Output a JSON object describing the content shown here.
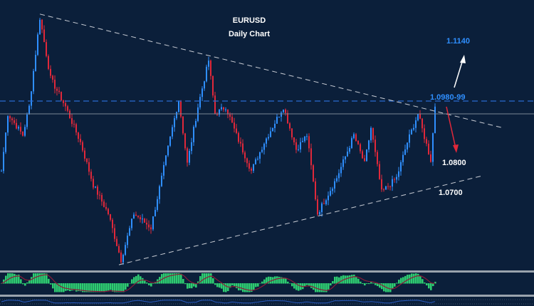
{
  "chart_data": {
    "type": "candlestick",
    "title": "EURUSD",
    "subtitle": "Daily Chart",
    "ylim": [
      1.041,
      1.129
    ],
    "key_closes": [
      {
        "bar": 0,
        "price": 1.0767
      },
      {
        "bar": 3,
        "price": 1.0941
      },
      {
        "bar": 10,
        "price": 1.0876
      },
      {
        "bar": 13,
        "price": 1.0963
      },
      {
        "bar": 18,
        "price": 1.1234
      },
      {
        "bar": 23,
        "price": 1.1049
      },
      {
        "bar": 30,
        "price": 1.0963
      },
      {
        "bar": 37,
        "price": 1.0854
      },
      {
        "bar": 43,
        "price": 1.0724
      },
      {
        "bar": 50,
        "price": 1.0637
      },
      {
        "bar": 56,
        "price": 1.0496
      },
      {
        "bar": 62,
        "price": 1.0637
      },
      {
        "bar": 70,
        "price": 1.0594
      },
      {
        "bar": 75,
        "price": 1.0746
      },
      {
        "bar": 80,
        "price": 1.0898
      },
      {
        "bar": 83,
        "price": 1.0984
      },
      {
        "bar": 87,
        "price": 1.0789
      },
      {
        "bar": 92,
        "price": 1.0963
      },
      {
        "bar": 97,
        "price": 1.1104
      },
      {
        "bar": 100,
        "price": 1.0941
      },
      {
        "bar": 105,
        "price": 1.0963
      },
      {
        "bar": 110,
        "price": 1.0876
      },
      {
        "bar": 117,
        "price": 1.0767
      },
      {
        "bar": 123,
        "price": 1.0854
      },
      {
        "bar": 132,
        "price": 1.0963
      },
      {
        "bar": 138,
        "price": 1.0833
      },
      {
        "bar": 143,
        "price": 1.0876
      },
      {
        "bar": 148,
        "price": 1.0637
      },
      {
        "bar": 157,
        "price": 1.0746
      },
      {
        "bar": 165,
        "price": 1.0876
      },
      {
        "bar": 170,
        "price": 1.0789
      },
      {
        "bar": 173,
        "price": 1.0898
      },
      {
        "bar": 178,
        "price": 1.0702
      },
      {
        "bar": 185,
        "price": 1.0746
      },
      {
        "bar": 190,
        "price": 1.0854
      },
      {
        "bar": 195,
        "price": 1.0941
      },
      {
        "bar": 201,
        "price": 1.08
      },
      {
        "bar": 203,
        "price": 1.0963
      }
    ],
    "trendlines": {
      "upper": {
        "from": {
          "bar": 18,
          "price": 1.1245
        },
        "to": {
          "bar": 235,
          "price": 1.0898
        }
      },
      "lower": {
        "from": {
          "bar": 55,
          "price": 1.0481
        },
        "to": {
          "bar": 225,
          "price": 1.0752
        }
      }
    },
    "levels": {
      "resistance_dashed": 1.098,
      "reference_solid": 1.0941
    },
    "annotations": [
      {
        "text": "1.1140",
        "price": 1.114,
        "color": "#2f8fff"
      },
      {
        "text": "1.0980-99",
        "price": 1.0995,
        "color": "#2f8fff"
      },
      {
        "text": "1.0800",
        "price": 1.08,
        "color": "#ffffff"
      },
      {
        "text": "1.0700",
        "price": 1.07,
        "color": "#ffffff"
      }
    ],
    "colors": {
      "bg": "#0b1f3a",
      "up": "#2f8fff",
      "down": "#e0283a",
      "osc": "#2ecc71",
      "signal": "#8b1c3a"
    }
  }
}
